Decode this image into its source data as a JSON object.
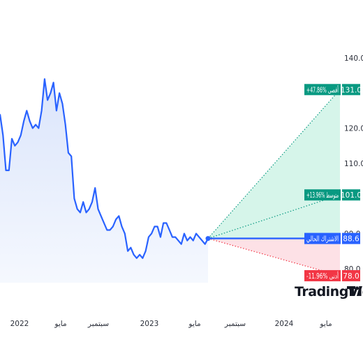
{
  "brand": {
    "name": "TradingView",
    "logo_icon": "tradingview-tv-logo-icon"
  },
  "colors": {
    "price_line": "#2962ff",
    "area_fill": "#e8eefc",
    "high_fill": "#d6f5ea",
    "low_fill": "#fde1e6",
    "high_tag": "#089981",
    "avg_tag": "#089981",
    "current_tag": "#2962ff",
    "low_tag": "#f23645"
  },
  "chart_data": {
    "type": "line",
    "title": "",
    "xlabel": "",
    "ylabel": "",
    "x_ticks": [
      "2022",
      "مايو",
      "سبتمبر",
      "2023",
      "مايو",
      "سبتمبر",
      "2024",
      "مايو"
    ],
    "y_ticks": [
      "140.0",
      "120.0",
      "110.0",
      "90.0",
      "80.0"
    ],
    "ylim": [
      76,
      141
    ],
    "series": [
      {
        "values": [
          124,
          118,
          108,
          108,
          117,
          115,
          116,
          118,
          122,
          125,
          122,
          120,
          121,
          120,
          125,
          134,
          128,
          130,
          133,
          125,
          130,
          127,
          121,
          113,
          112,
          100,
          97,
          96,
          99,
          96,
          97,
          99,
          103,
          97,
          95,
          93,
          91,
          91,
          92,
          94,
          95,
          92,
          90,
          85,
          86,
          84,
          83,
          84,
          83,
          85,
          89,
          90,
          92,
          92,
          89,
          93,
          93,
          91,
          89,
          89,
          88,
          87,
          90,
          88,
          89,
          88,
          90,
          89,
          88,
          87,
          88.6
        ]
      }
    ],
    "forecast": {
      "current": {
        "label": "الاشتراك الحالي",
        "value": "88.6"
      },
      "high": {
        "label": "أقصى",
        "pct": "+47.86%",
        "value": "131.0"
      },
      "average": {
        "label": "متوسط",
        "pct": "+13.96%",
        "value": "101.0"
      },
      "low": {
        "label": "أدنى",
        "pct": "-11.96%",
        "value": "78.0"
      }
    }
  }
}
